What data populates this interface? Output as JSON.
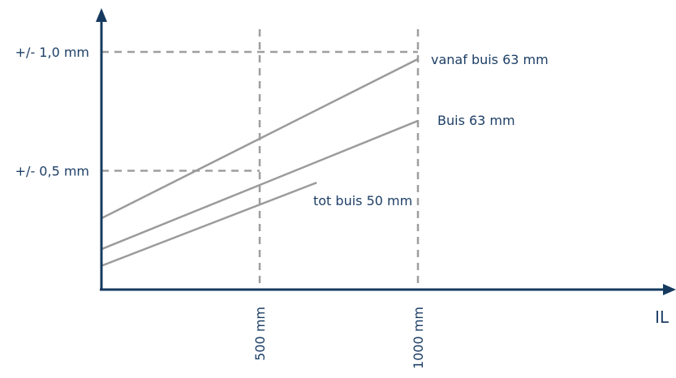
{
  "chart_data": {
    "type": "line",
    "xlabel": "IL",
    "ylabel": "",
    "xlim": [
      0,
      1550
    ],
    "ylim": [
      0,
      1.2
    ],
    "x_ticks": [
      {
        "value": 500,
        "label": "500 mm"
      },
      {
        "value": 1000,
        "label": "1000 mm"
      }
    ],
    "y_ticks": [
      {
        "value": 0.5,
        "label": "+/- 0,5 mm"
      },
      {
        "value": 1.0,
        "label": "+/- 1,0 mm"
      }
    ],
    "series": [
      {
        "name": "vanaf buis 63 mm",
        "x": [
          0,
          1000
        ],
        "y": [
          0.3,
          0.97
        ]
      },
      {
        "name": "Buis 63 mm",
        "x": [
          0,
          1000
        ],
        "y": [
          0.17,
          0.71
        ]
      },
      {
        "name": "tot buis 50 mm",
        "x": [
          0,
          680
        ],
        "y": [
          0.1,
          0.45
        ]
      }
    ],
    "grid": false,
    "colors": {
      "axis": "#163a5f",
      "text": "#1e3f66",
      "lines": "#9b9b9b",
      "guides": "#9e9e9e"
    }
  }
}
